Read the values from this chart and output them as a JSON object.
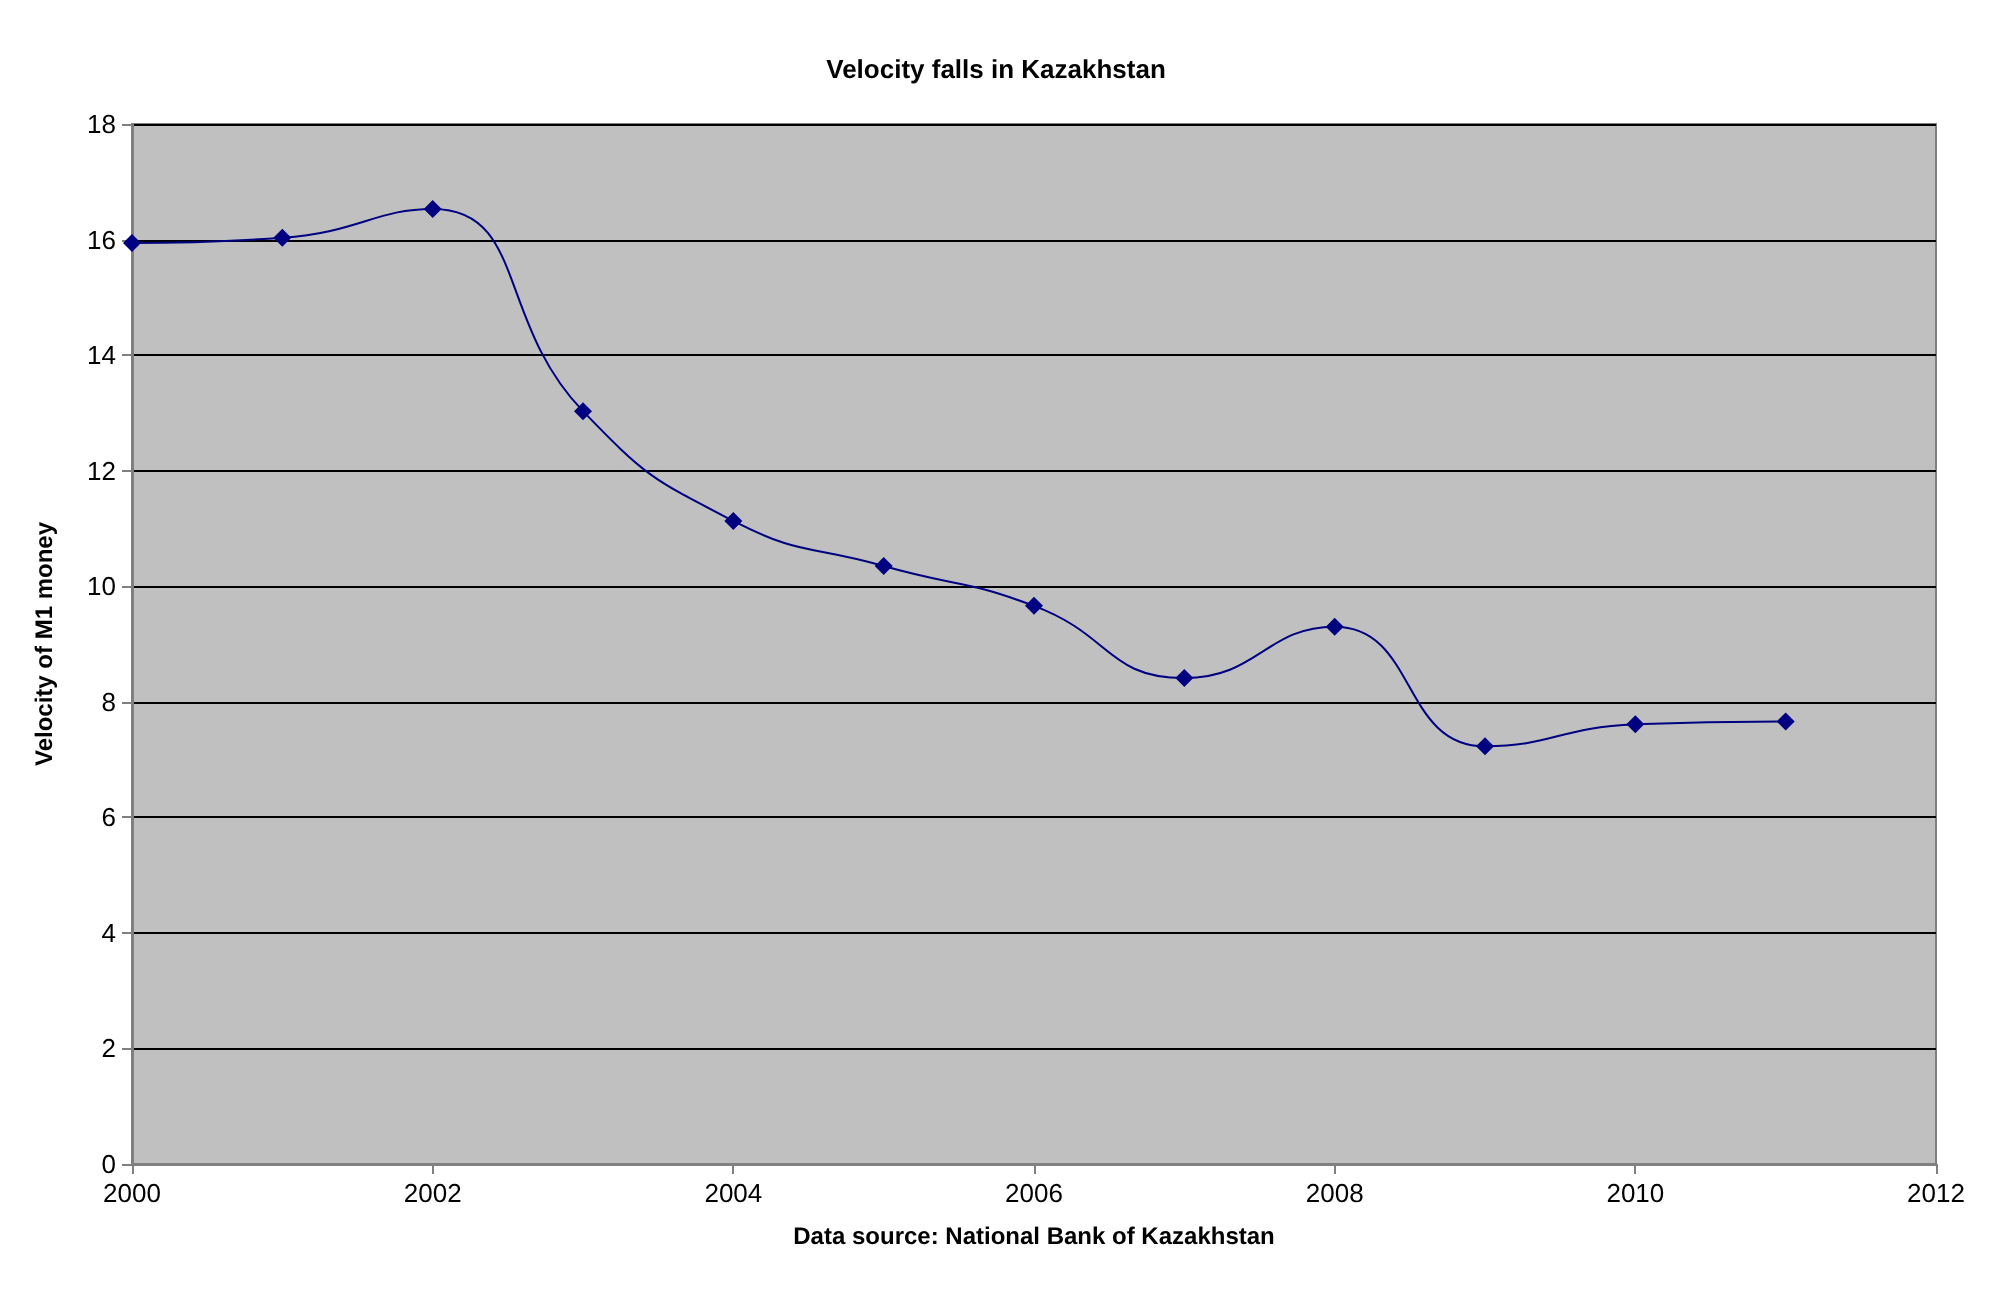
{
  "chart_data": {
    "type": "line",
    "title": "Velocity falls in Kazakhstan",
    "xlabel": "Data source: National Bank of Kazakhstan",
    "ylabel": "Velocity of M1 money",
    "x": [
      2000,
      2001,
      2002,
      2003,
      2004,
      2005,
      2006,
      2007,
      2008,
      2009,
      2010,
      2011
    ],
    "series": [
      {
        "color": "#000080",
        "values": [
          15.94,
          16.03,
          16.53,
          13.03,
          11.13,
          10.35,
          9.66,
          8.41,
          9.3,
          7.23,
          7.61,
          7.66
        ]
      }
    ],
    "xlim": [
      2000,
      2012
    ],
    "xticks": [
      2000,
      2002,
      2004,
      2006,
      2008,
      2010,
      2012
    ],
    "ylim": [
      0,
      18
    ],
    "yticks": [
      0,
      2,
      4,
      6,
      8,
      10,
      12,
      14,
      16,
      18
    ],
    "grid": "y",
    "marker": "diamond",
    "line_style": "solid"
  }
}
